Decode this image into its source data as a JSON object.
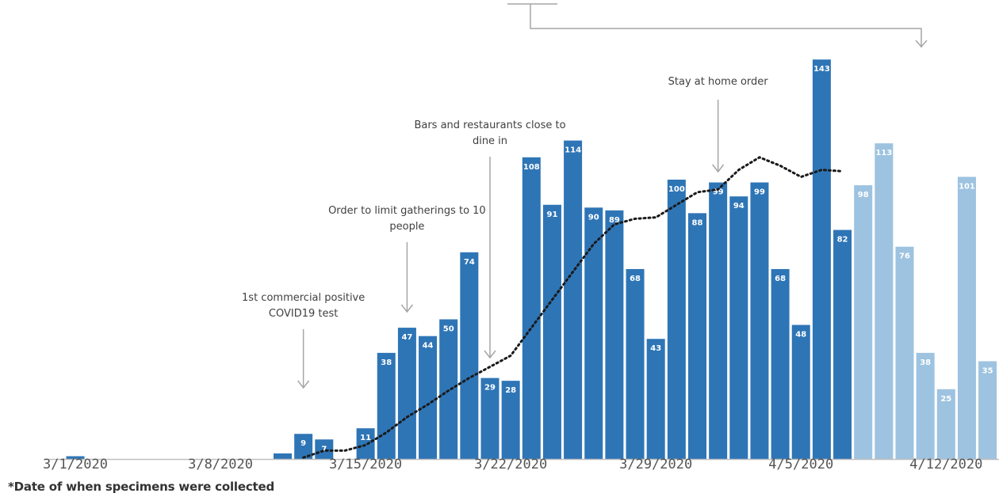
{
  "chart_data": {
    "type": "bar",
    "x_tick_labels": [
      "3/1/2020",
      "3/8/2020",
      "3/15/2020",
      "3/22/2020",
      "3/29/2020",
      "4/5/2020",
      "4/12/2020"
    ],
    "x": [
      "3/1/2020",
      "3/2/2020",
      "3/3/2020",
      "3/4/2020",
      "3/5/2020",
      "3/6/2020",
      "3/7/2020",
      "3/8/2020",
      "3/9/2020",
      "3/10/2020",
      "3/11/2020",
      "3/12/2020",
      "3/13/2020",
      "3/14/2020",
      "3/15/2020",
      "3/16/2020",
      "3/17/2020",
      "3/18/2020",
      "3/19/2020",
      "3/20/2020",
      "3/21/2020",
      "3/22/2020",
      "3/23/2020",
      "3/24/2020",
      "3/25/2020",
      "3/26/2020",
      "3/27/2020",
      "3/28/2020",
      "3/29/2020",
      "3/30/2020",
      "3/31/2020",
      "4/1/2020",
      "4/2/2020",
      "4/3/2020",
      "4/4/2020",
      "4/5/2020",
      "4/6/2020",
      "4/7/2020",
      "4/8/2020",
      "4/9/2020",
      "4/10/2020",
      "4/11/2020",
      "4/12/2020",
      "4/13/2020",
      "4/14/2020"
    ],
    "values": [
      1,
      0,
      0,
      0,
      0,
      0,
      0,
      0,
      0,
      0,
      2,
      9,
      7,
      0,
      11,
      38,
      47,
      44,
      50,
      74,
      29,
      28,
      108,
      91,
      114,
      90,
      89,
      68,
      43,
      100,
      88,
      99,
      94,
      99,
      68,
      48,
      143,
      82,
      98,
      113,
      76,
      38,
      25,
      101,
      35
    ],
    "value_labels": [
      "",
      "",
      "",
      "",
      "",
      "",
      "",
      "",
      "",
      "",
      "",
      "9",
      "7",
      "",
      "11",
      "38",
      "47",
      "44",
      "50",
      "74",
      "29",
      "28",
      "108",
      "91",
      "114",
      "90",
      "89",
      "68",
      "43",
      "100",
      "88",
      "99",
      "94",
      "99",
      "68",
      "48",
      "143",
      "82",
      "98",
      "113",
      "76",
      "38",
      "25",
      "101",
      "35"
    ],
    "series": [
      {
        "values": [
          1,
          0,
          0,
          0,
          0,
          0,
          0,
          0,
          0,
          0,
          2,
          9,
          7,
          0,
          11,
          38,
          47,
          44,
          50,
          74,
          29,
          28,
          108,
          91,
          114,
          90,
          89,
          68,
          43,
          100,
          88,
          99,
          94,
          99,
          68,
          48,
          143,
          82,
          null,
          null,
          null,
          null,
          null,
          null,
          null
        ],
        "color": "#2e75b6"
      },
      {
        "values": [
          null,
          null,
          null,
          null,
          null,
          null,
          null,
          null,
          null,
          null,
          null,
          null,
          null,
          null,
          null,
          null,
          null,
          null,
          null,
          null,
          null,
          null,
          null,
          null,
          null,
          null,
          null,
          null,
          null,
          null,
          null,
          null,
          null,
          null,
          null,
          null,
          null,
          null,
          98,
          113,
          76,
          38,
          25,
          101,
          35
        ],
        "color": "#9dc3e0"
      }
    ],
    "moving_average": {
      "style": "dotted",
      "color": "#1a1a1a",
      "values": [
        null,
        null,
        null,
        null,
        null,
        null,
        null,
        null,
        null,
        null,
        null,
        0.5,
        3,
        3,
        5,
        9.5,
        15,
        19.5,
        24.5,
        29,
        33,
        37,
        47,
        57,
        67,
        77,
        84,
        86,
        86.5,
        91,
        95.5,
        96.5,
        103.5,
        108,
        105,
        101,
        103.5,
        103
      ]
    },
    "annotations": [
      {
        "text_lines": [
          "1st commercial positive",
          "COVID19 test"
        ],
        "x": "3/12/2020"
      },
      {
        "text_lines": [
          "Order to limit gatherings to 10",
          "people"
        ],
        "x": "3/17/2020"
      },
      {
        "text_lines": [
          "Bars and restaurants close to",
          "dine in"
        ],
        "x": "3/21/2020"
      },
      {
        "text_lines": [
          "Stay at home order"
        ],
        "x": "4/1/2020"
      }
    ],
    "ylim": [
      0,
      150
    ],
    "grid": false,
    "legend": "none"
  },
  "footnote": "*Date of when specimens were collected",
  "colors": {
    "confirmed": "#2e75b6",
    "pending": "#9dc3e0",
    "axis": "#bfbfbf",
    "arrow": "#a6a6a6"
  }
}
